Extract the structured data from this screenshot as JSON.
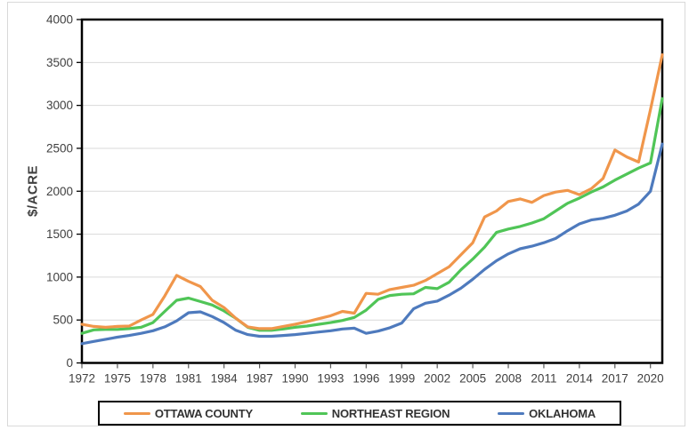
{
  "frame": {
    "background_color": "#ffffff",
    "border_color": "#d9d9d9"
  },
  "chart_data": {
    "type": "line",
    "title": "",
    "xlabel": "",
    "ylabel": "$/ACRE",
    "ylim": [
      0,
      4000
    ],
    "yticks": [
      0,
      500,
      1000,
      1500,
      2000,
      2500,
      3000,
      3500,
      4000
    ],
    "xtick_labels": [
      "1972",
      "1975",
      "1978",
      "1981",
      "1984",
      "1987",
      "1990",
      "1993",
      "1996",
      "1999",
      "2002",
      "2005",
      "2008",
      "2011",
      "2014",
      "2017",
      "2020"
    ],
    "x_range": [
      1972,
      2021
    ],
    "grid": "horizontal",
    "gridline_color": "#d9d9d9",
    "axis_border_color": "#000000",
    "tick_label_color": "#404040",
    "legend_position": "bottom-outside",
    "x": [
      1972,
      1973,
      1974,
      1975,
      1976,
      1977,
      1978,
      1979,
      1980,
      1981,
      1982,
      1983,
      1984,
      1985,
      1986,
      1987,
      1988,
      1989,
      1990,
      1991,
      1992,
      1993,
      1994,
      1995,
      1996,
      1997,
      1998,
      1999,
      2000,
      2001,
      2002,
      2003,
      2004,
      2005,
      2006,
      2007,
      2008,
      2009,
      2010,
      2011,
      2012,
      2013,
      2014,
      2015,
      2016,
      2017,
      2018,
      2019,
      2020,
      2021
    ],
    "series": [
      {
        "name": "OTTAWA COUNTY",
        "color": "#f0964b",
        "values": [
          450,
          425,
          415,
          425,
          430,
          500,
          565,
          780,
          1020,
          950,
          890,
          730,
          645,
          520,
          420,
          400,
          400,
          425,
          450,
          480,
          515,
          550,
          600,
          580,
          810,
          800,
          855,
          880,
          905,
          960,
          1040,
          1120,
          1260,
          1400,
          1700,
          1770,
          1880,
          1910,
          1870,
          1950,
          1990,
          2010,
          1960,
          2030,
          2150,
          2480,
          2400,
          2340,
          2950,
          3590
        ]
      },
      {
        "name": "NORTHEAST REGION",
        "color": "#50c557",
        "values": [
          345,
          385,
          390,
          390,
          400,
          415,
          470,
          600,
          730,
          755,
          715,
          675,
          605,
          520,
          415,
          380,
          380,
          395,
          415,
          430,
          450,
          470,
          495,
          530,
          615,
          740,
          785,
          800,
          805,
          880,
          865,
          940,
          1085,
          1210,
          1350,
          1520,
          1560,
          1590,
          1630,
          1680,
          1770,
          1860,
          1920,
          1990,
          2050,
          2130,
          2200,
          2270,
          2330,
          3080
        ]
      },
      {
        "name": "OKLAHOMA",
        "color": "#4e7abd",
        "values": [
          225,
          250,
          275,
          300,
          320,
          345,
          375,
          420,
          490,
          585,
          595,
          540,
          470,
          380,
          330,
          310,
          310,
          320,
          330,
          345,
          360,
          375,
          395,
          405,
          345,
          370,
          410,
          465,
          630,
          695,
          720,
          790,
          870,
          975,
          1090,
          1190,
          1270,
          1330,
          1360,
          1400,
          1450,
          1540,
          1620,
          1665,
          1685,
          1720,
          1770,
          1850,
          2000,
          2550
        ]
      }
    ]
  }
}
